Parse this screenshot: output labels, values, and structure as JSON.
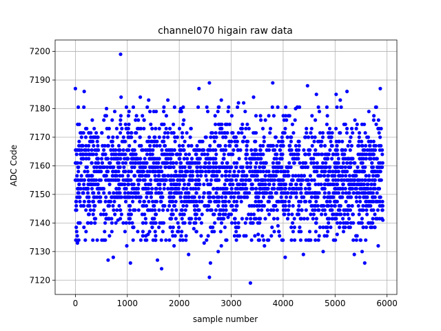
{
  "chart_data": {
    "type": "scatter",
    "title": "channel070 higain raw data",
    "xlabel": "sample number",
    "ylabel": "ADC Code",
    "xlim": [
      -390,
      6190
    ],
    "ylim": [
      7115.0,
      7204.0
    ],
    "xticks": [
      0,
      1000,
      2000,
      3000,
      4000,
      5000,
      6000
    ],
    "xtick_labels": [
      "0",
      "1000",
      "2000",
      "3000",
      "4000",
      "5000",
      "6000"
    ],
    "yticks": [
      7120,
      7130,
      7140,
      7150,
      7160,
      7170,
      7180,
      7190,
      7200
    ],
    "ytick_labels": [
      "7120",
      "7130",
      "7140",
      "7150",
      "7160",
      "7170",
      "7180",
      "7190",
      "7200"
    ],
    "grid": true,
    "marker_color": "#0000ff",
    "series": [
      {
        "name": "",
        "color": "#0000ff",
        "points": [
          [
            0,
            7187
          ],
          [
            870,
            7199
          ],
          [
            2580,
            7189
          ],
          [
            3800,
            7189
          ],
          [
            4470,
            7188
          ],
          [
            5870,
            7187
          ],
          [
            170,
            7186
          ],
          [
            2380,
            7187
          ],
          [
            5020,
            7185
          ],
          [
            5230,
            7186
          ],
          [
            4640,
            7185
          ],
          [
            1250,
            7184
          ],
          [
            2810,
            7183
          ],
          [
            3430,
            7184
          ],
          [
            880,
            7184
          ],
          [
            1410,
            7183
          ],
          [
            1780,
            7183
          ],
          [
            5100,
            7183
          ],
          [
            3140,
            7182
          ],
          [
            3240,
            7182
          ],
          [
            600,
            7180
          ],
          [
            2030,
            7180
          ],
          [
            4240,
            7180
          ],
          [
            5650,
            7179
          ],
          [
            3370,
            7119
          ],
          [
            2580,
            7121
          ],
          [
            1660,
            7124
          ],
          [
            1060,
            7126
          ],
          [
            2600,
            7126
          ],
          [
            5570,
            7126
          ],
          [
            630,
            7127
          ],
          [
            1580,
            7127
          ],
          [
            4040,
            7128
          ],
          [
            730,
            7128
          ],
          [
            2180,
            7129
          ],
          [
            4390,
            7129
          ],
          [
            5370,
            7129
          ],
          [
            2750,
            7130
          ],
          [
            5520,
            7130
          ],
          [
            4770,
            7130
          ],
          [
            40,
            7133
          ],
          [
            990,
            7132
          ],
          [
            2480,
            7133
          ],
          [
            2810,
            7132
          ],
          [
            3640,
            7132
          ],
          [
            1900,
            7132
          ],
          [
            4160,
            7134
          ],
          [
            5830,
            7132
          ],
          [
            510,
            7134
          ],
          [
            1260,
            7134
          ],
          [
            3100,
            7134
          ],
          [
            4680,
            7134
          ],
          [
            1400,
            7136
          ],
          [
            3520,
            7136
          ],
          [
            5040,
            7136
          ],
          [
            2280,
            7138
          ],
          [
            4630,
            7137
          ],
          [
            300,
            7140
          ],
          [
            1700,
            7140
          ],
          [
            3900,
            7139
          ],
          [
            5350,
            7140
          ],
          [
            820,
            7141
          ],
          [
            1330,
            7143
          ],
          [
            2940,
            7142
          ],
          [
            4300,
            7143
          ],
          [
            5920,
            7141
          ]
        ],
        "band": {
          "count": 2600,
          "x_range": [
            0,
            5920
          ],
          "y_center": 7156,
          "y_min": 7140,
          "y_max": 7176,
          "y_step": 1.5
        }
      }
    ]
  }
}
